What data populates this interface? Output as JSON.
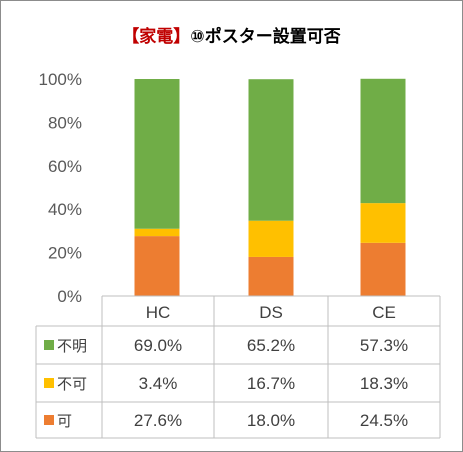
{
  "chart_data": {
    "type": "bar",
    "stacked": true,
    "title_bracket": "【家電】",
    "title_main": "⑩ポスター設置可否",
    "categories": [
      "HC",
      "DS",
      "CE"
    ],
    "y_tick_labels": [
      "0%",
      "20%",
      "40%",
      "60%",
      "80%",
      "100%"
    ],
    "ylim": [
      0,
      100
    ],
    "grid": false,
    "legend": "data-table",
    "series": [
      {
        "name": "可",
        "values": [
          27.6,
          18.0,
          24.5
        ],
        "labels": [
          "27.6%",
          "18.0%",
          "24.5%"
        ],
        "color": "#ed7d31"
      },
      {
        "name": "不可",
        "values": [
          3.4,
          16.7,
          18.3
        ],
        "labels": [
          "3.4%",
          "16.7%",
          "18.3%"
        ],
        "color": "#ffc000"
      },
      {
        "name": "不明",
        "values": [
          69.0,
          65.2,
          57.3
        ],
        "labels": [
          "69.0%",
          "65.2%",
          "57.3%"
        ],
        "color": "#70ad47"
      }
    ],
    "table_row_order": [
      "不明",
      "不可",
      "可"
    ]
  },
  "colors": {
    "title_accent": "#c00000",
    "axis": "#bfbfbf",
    "text": "#404040"
  }
}
